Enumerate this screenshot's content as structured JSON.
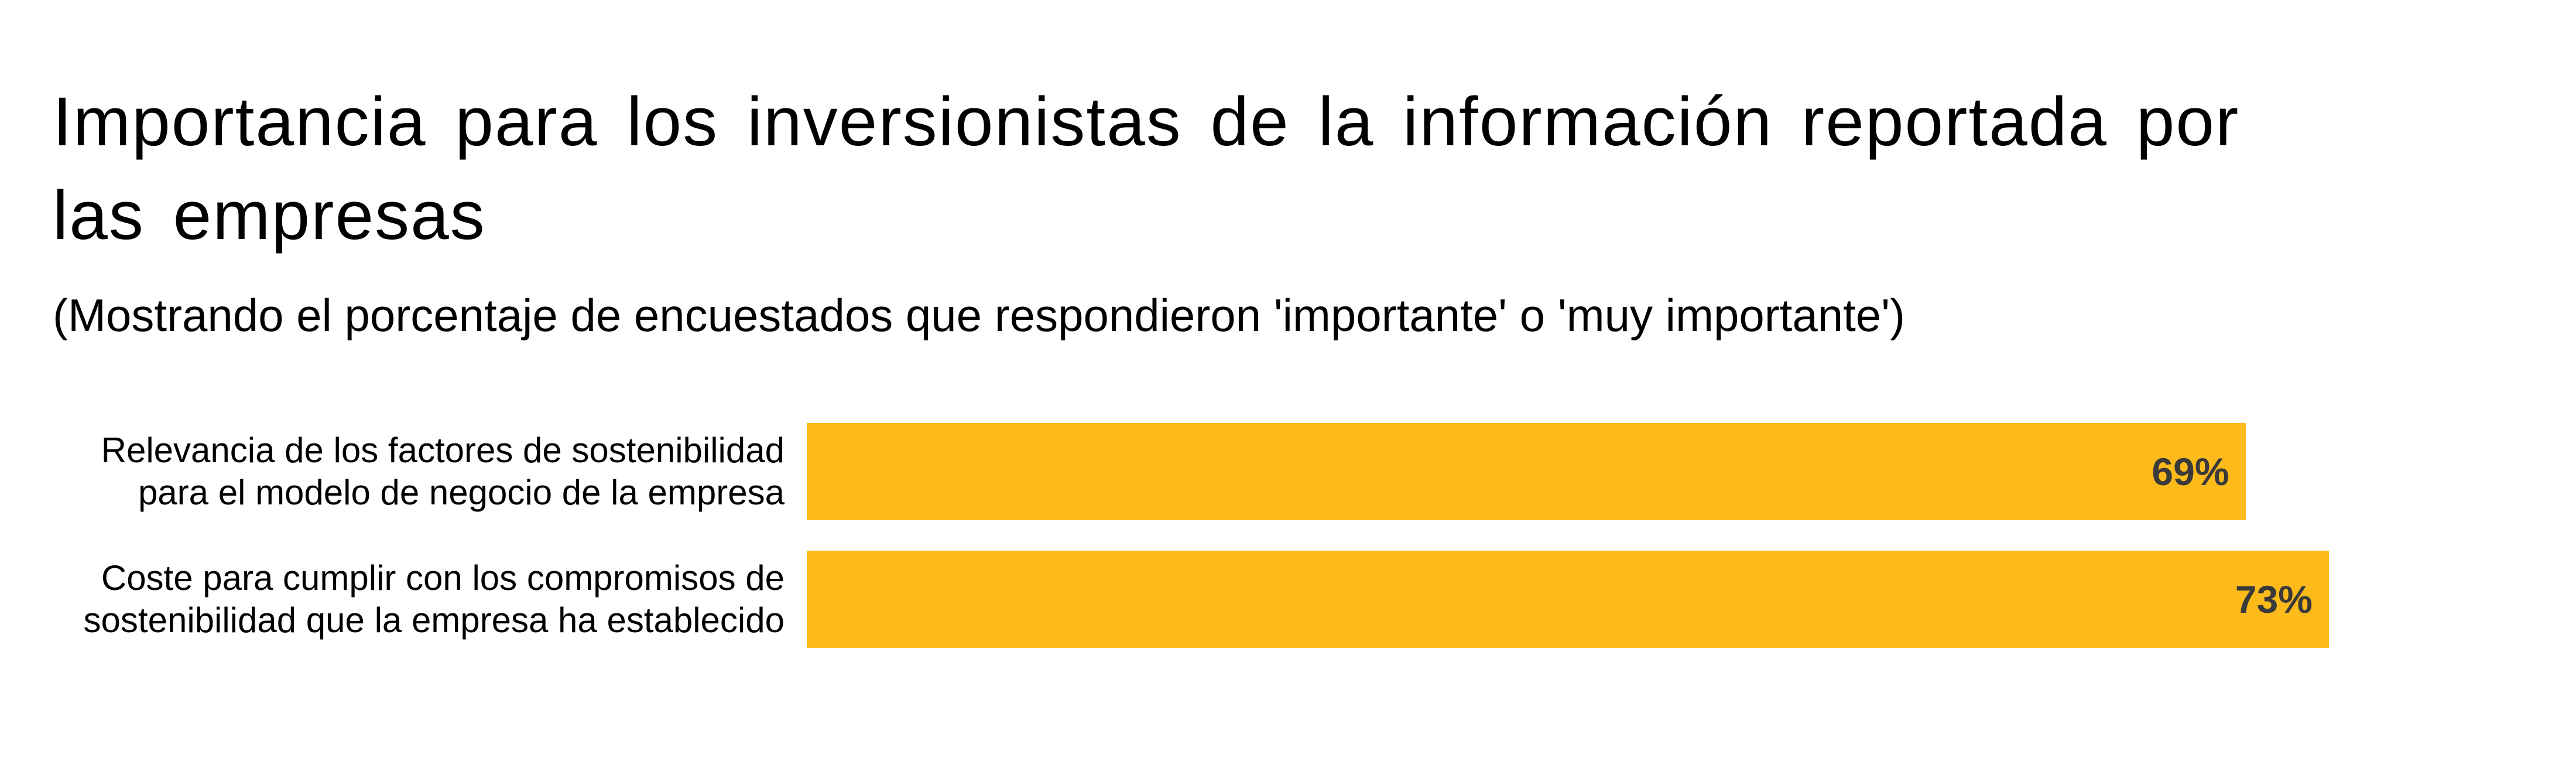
{
  "chart_data": {
    "type": "bar",
    "orientation": "horizontal",
    "title": "Importancia para los inversionistas de la información reportada por las empresas",
    "subtitle": "(Mostrando el porcentaje de encuestados que respondieron 'importante' o 'muy importante')",
    "categories": [
      "Relevancia de los factores de sostenibilidad\npara el modelo de negocio de la empresa",
      "Coste para cumplir con los compromisos de\nsostenibilidad que la empresa ha establecido"
    ],
    "values": [
      69,
      73
    ],
    "value_labels": [
      "69%",
      "73%"
    ],
    "xlim": [
      0,
      100
    ],
    "grid": false,
    "legend": "none",
    "colors": {
      "bar": "#FDBA1B",
      "value_label": "#3a3a3a"
    }
  }
}
